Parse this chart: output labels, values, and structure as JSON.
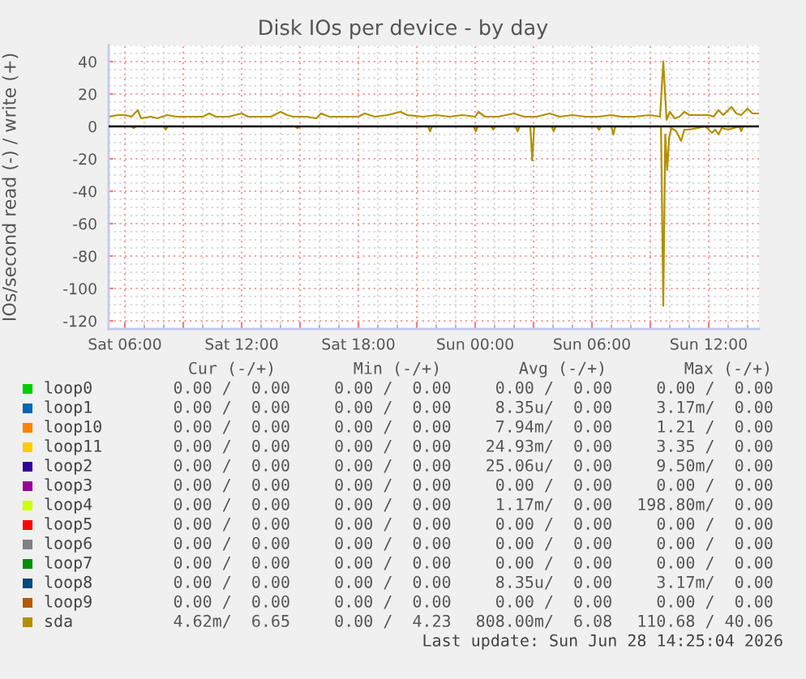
{
  "chart_data": {
    "type": "line",
    "title": "Disk IOs per device - by day",
    "ylabel": "IOs/second read (-) / write (+)",
    "xlim": [
      "2026-06-27T05:10",
      "2026-06-28T14:35"
    ],
    "xticks": [
      {
        "value": "2026-06-27T06:00",
        "label": "Sat 06:00"
      },
      {
        "value": "2026-06-27T09:00",
        "label": null
      },
      {
        "value": "2026-06-27T12:00",
        "label": "Sat 12:00"
      },
      {
        "value": "2026-06-27T15:00",
        "label": null
      },
      {
        "value": "2026-06-27T18:00",
        "label": "Sat 18:00"
      },
      {
        "value": "2026-06-27T21:00",
        "label": null
      },
      {
        "value": "2026-06-28T00:00",
        "label": "Sun 00:00"
      },
      {
        "value": "2026-06-28T03:00",
        "label": null
      },
      {
        "value": "2026-06-28T06:00",
        "label": "Sun 06:00"
      },
      {
        "value": "2026-06-28T09:00",
        "label": null
      },
      {
        "value": "2026-06-28T12:00",
        "label": "Sun 12:00"
      }
    ],
    "ylim": [
      -125,
      50
    ],
    "yticks": [
      -120,
      -100,
      -80,
      -60,
      -40,
      -20,
      0,
      20,
      40
    ],
    "grid": true,
    "legend": "bottom",
    "ref_lines": [
      {
        "axis": "y",
        "value": 0,
        "color": "#000000"
      }
    ],
    "series": [
      {
        "name": "loop0",
        "color": "#00cc00",
        "values": [
          null
        ]
      },
      {
        "name": "loop1",
        "color": "#0066b3",
        "values": [
          null
        ]
      },
      {
        "name": "loop10",
        "color": "#ff8000",
        "values": [
          null
        ]
      },
      {
        "name": "loop11",
        "color": "#ffcc00",
        "values": [
          null
        ]
      },
      {
        "name": "loop2",
        "color": "#330099",
        "values": [
          null
        ]
      },
      {
        "name": "loop3",
        "color": "#990099",
        "values": [
          null
        ]
      },
      {
        "name": "loop4",
        "color": "#ccff00",
        "values": [
          null
        ]
      },
      {
        "name": "loop5",
        "color": "#ff0000",
        "values": [
          null
        ]
      },
      {
        "name": "loop6",
        "color": "#808080",
        "values": [
          null
        ]
      },
      {
        "name": "loop7",
        "color": "#008f00",
        "values": [
          null
        ]
      },
      {
        "name": "loop8",
        "color": "#00487d",
        "values": [
          null
        ]
      },
      {
        "name": "loop9",
        "color": "#b35a00",
        "values": [
          null
        ]
      },
      {
        "name": "sda",
        "color": "#b38f00",
        "x": [
          "2026-06-27T05:10",
          "2026-06-27T05:40",
          "2026-06-27T06:00",
          "2026-06-27T06:20",
          "2026-06-27T06:40",
          "2026-06-27T06:50",
          "2026-06-27T07:20",
          "2026-06-27T07:40",
          "2026-06-27T08:10",
          "2026-06-27T08:40",
          "2026-06-27T09:20",
          "2026-06-27T10:00",
          "2026-06-27T10:20",
          "2026-06-27T10:40",
          "2026-06-27T11:20",
          "2026-06-27T12:00",
          "2026-06-27T12:20",
          "2026-06-27T12:50",
          "2026-06-27T13:30",
          "2026-06-27T14:00",
          "2026-06-27T14:20",
          "2026-06-27T14:40",
          "2026-06-27T15:20",
          "2026-06-27T15:50",
          "2026-06-27T16:05",
          "2026-06-27T16:30",
          "2026-06-27T17:20",
          "2026-06-27T18:00",
          "2026-06-27T18:20",
          "2026-06-27T18:50",
          "2026-06-27T19:30",
          "2026-06-27T20:10",
          "2026-06-27T20:30",
          "2026-06-27T21:20",
          "2026-06-27T22:00",
          "2026-06-27T22:40",
          "2026-06-27T23:20",
          "2026-06-28T00:00",
          "2026-06-28T00:10",
          "2026-06-28T00:30",
          "2026-06-28T01:10",
          "2026-06-28T02:00",
          "2026-06-28T02:30",
          "2026-06-28T03:10",
          "2026-06-28T03:50",
          "2026-06-28T04:20",
          "2026-06-28T05:00",
          "2026-06-28T05:40",
          "2026-06-28T06:20",
          "2026-06-28T07:00",
          "2026-06-28T07:30",
          "2026-06-28T08:10",
          "2026-06-28T09:00",
          "2026-06-28T09:30",
          "2026-06-28T09:40",
          "2026-06-28T09:50",
          "2026-06-28T10:00",
          "2026-06-28T10:15",
          "2026-06-28T10:30",
          "2026-06-28T10:45",
          "2026-06-28T11:00",
          "2026-06-28T11:30",
          "2026-06-28T12:00",
          "2026-06-28T12:15",
          "2026-06-28T12:30",
          "2026-06-28T12:45",
          "2026-06-28T13:10",
          "2026-06-28T13:25",
          "2026-06-28T13:40",
          "2026-06-28T14:00",
          "2026-06-28T14:15",
          "2026-06-28T14:35"
        ],
        "values": [
          6,
          7,
          7,
          6,
          10,
          5,
          6,
          5,
          7,
          6,
          6,
          6,
          8,
          6,
          6,
          8,
          6,
          6,
          6,
          9,
          7,
          6,
          6,
          5,
          8,
          6,
          6,
          6,
          8,
          6,
          7,
          9,
          7,
          6,
          7,
          6,
          7,
          6,
          9,
          6,
          6,
          8,
          6,
          6,
          8,
          6,
          7,
          6,
          6,
          7,
          6,
          6,
          7,
          6,
          40.06,
          4,
          9,
          5,
          6,
          9,
          7,
          7,
          7,
          6,
          10,
          7,
          12,
          8,
          7,
          11,
          8,
          8
        ]
      },
      {
        "color": "#b38f00",
        "x": [
          "2026-06-27T05:10",
          "2026-06-27T06:20",
          "2026-06-27T06:27",
          "2026-06-27T06:35",
          "2026-06-27T08:00",
          "2026-06-27T08:06",
          "2026-06-27T08:12",
          "2026-06-27T14:45",
          "2026-06-27T14:52",
          "2026-06-27T15:00",
          "2026-06-27T21:35",
          "2026-06-27T21:41",
          "2026-06-27T21:47",
          "2026-06-27T23:55",
          "2026-06-28T00:02",
          "2026-06-28T00:08",
          "2026-06-28T00:50",
          "2026-06-28T00:56",
          "2026-06-28T01:02",
          "2026-06-28T02:05",
          "2026-06-28T02:11",
          "2026-06-28T02:17",
          "2026-06-28T02:50",
          "2026-06-28T02:56",
          "2026-06-28T03:02",
          "2026-06-28T03:56",
          "2026-06-28T04:02",
          "2026-06-28T04:08",
          "2026-06-28T06:15",
          "2026-06-28T06:22",
          "2026-06-28T06:28",
          "2026-06-28T07:00",
          "2026-06-28T07:06",
          "2026-06-28T07:12",
          "2026-06-28T09:33",
          "2026-06-28T09:40",
          "2026-06-28T09:46",
          "2026-06-28T09:52",
          "2026-06-28T09:58",
          "2026-06-28T10:05",
          "2026-06-28T10:20",
          "2026-06-28T10:35",
          "2026-06-28T10:45",
          "2026-06-28T11:00",
          "2026-06-28T11:50",
          "2026-06-28T12:00",
          "2026-06-28T12:10",
          "2026-06-28T12:20",
          "2026-06-28T12:30",
          "2026-06-28T12:40",
          "2026-06-28T13:00",
          "2026-06-28T13:35",
          "2026-06-28T13:40",
          "2026-06-28T13:46",
          "2026-06-28T14:35"
        ],
        "values": [
          0,
          0,
          -1,
          0,
          0,
          -2,
          0,
          0,
          -1,
          0,
          0,
          -3,
          0,
          0,
          -3,
          0,
          0,
          -2,
          0,
          0,
          -3,
          0,
          0,
          -21,
          0,
          0,
          -3,
          0,
          0,
          -2,
          0,
          0,
          -5,
          0,
          0,
          -110.68,
          -5,
          -27,
          -7,
          -1,
          -3,
          -9,
          -2,
          -2,
          0,
          -2,
          -4,
          -2,
          -5,
          -1,
          -2,
          0,
          -3,
          0,
          0
        ]
      }
    ],
    "annotations": [
      "Cur (-/+)",
      "Min (-/+)",
      "Avg (-/+)",
      "Max (-/+)",
      "0.00 /  0.00",
      "0.00 /  0.00",
      "0.00 /  0.00",
      "0.00 /  0.00",
      "0.00 /  0.00",
      "0.00 /  0.00",
      "8.35u/  0.00",
      "3.17m/  0.00",
      "0.00 /  0.00",
      "0.00 /  0.00",
      "7.94m/  0.00",
      "1.21 /  0.00",
      "0.00 /  0.00",
      "0.00 /  0.00",
      "24.93m/  0.00",
      "3.35 /  0.00",
      "0.00 /  0.00",
      "0.00 /  0.00",
      "25.06u/  0.00",
      "9.50m/  0.00",
      "0.00 /  0.00",
      "0.00 /  0.00",
      "0.00 /  0.00",
      "0.00 /  0.00",
      "0.00 /  0.00",
      "0.00 /  0.00",
      "1.17m/  0.00",
      "198.80m/  0.00",
      "0.00 /  0.00",
      "0.00 /  0.00",
      "0.00 /  0.00",
      "0.00 /  0.00",
      "0.00 /  0.00",
      "0.00 /  0.00",
      "0.00 /  0.00",
      "0.00 /  0.00",
      "0.00 /  0.00",
      "0.00 /  0.00",
      "0.00 /  0.00",
      "0.00 /  0.00",
      "0.00 /  0.00",
      "0.00 /  0.00",
      "8.35u/  0.00",
      "3.17m/  0.00",
      "0.00 /  0.00",
      "0.00 /  0.00",
      "0.00 /  0.00",
      "0.00 /  0.00",
      "4.62m/  6.65",
      "0.00 /  4.23",
      "808.00m/  6.08",
      "110.68 / 40.06",
      "Last update: Sun Jun 28 14:25:04 2026"
    ]
  }
}
